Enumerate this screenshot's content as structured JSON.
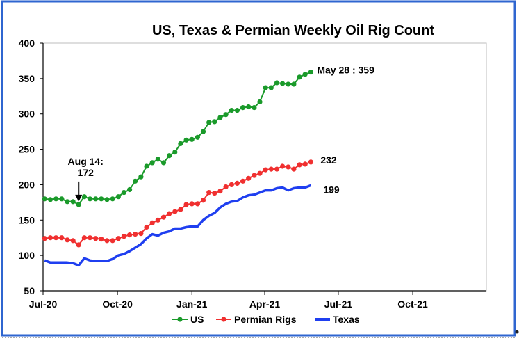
{
  "chart_data": {
    "type": "line",
    "title": "US, Texas & Permian Weekly Oil Rig Count",
    "xlabel": "",
    "ylabel": "",
    "ylim": [
      50,
      400
    ],
    "yticks": [
      50,
      100,
      150,
      200,
      250,
      300,
      350,
      400
    ],
    "xlim": [
      "2020-07-01",
      "2021-12-31"
    ],
    "xticks": [
      {
        "date": "2020-07-01",
        "label": "Jul-20"
      },
      {
        "date": "2020-10-01",
        "label": "Oct-20"
      },
      {
        "date": "2021-01-01",
        "label": "Jan-21"
      },
      {
        "date": "2021-04-01",
        "label": "Apr-21"
      },
      {
        "date": "2021-07-01",
        "label": "Jul-21"
      },
      {
        "date": "2021-10-01",
        "label": "Oct-21"
      }
    ],
    "grid": false,
    "legend_position": "bottom",
    "x": [
      "2020-07-03",
      "2020-07-10",
      "2020-07-17",
      "2020-07-24",
      "2020-07-31",
      "2020-08-07",
      "2020-08-14",
      "2020-08-21",
      "2020-08-28",
      "2020-09-04",
      "2020-09-11",
      "2020-09-18",
      "2020-09-25",
      "2020-10-02",
      "2020-10-09",
      "2020-10-16",
      "2020-10-23",
      "2020-10-30",
      "2020-11-06",
      "2020-11-13",
      "2020-11-20",
      "2020-11-27",
      "2020-12-04",
      "2020-12-11",
      "2020-12-18",
      "2020-12-25",
      "2021-01-01",
      "2021-01-08",
      "2021-01-15",
      "2021-01-22",
      "2021-01-29",
      "2021-02-05",
      "2021-02-12",
      "2021-02-19",
      "2021-02-26",
      "2021-03-05",
      "2021-03-12",
      "2021-03-19",
      "2021-03-26",
      "2021-04-02",
      "2021-04-09",
      "2021-04-16",
      "2021-04-23",
      "2021-04-30",
      "2021-05-07",
      "2021-05-14",
      "2021-05-21",
      "2021-05-28"
    ],
    "series": [
      {
        "name": "US",
        "color": "#1a9a2a",
        "values": [
          180,
          179,
          180,
          180,
          176,
          176,
          172,
          183,
          180,
          180,
          180,
          179,
          180,
          183,
          189,
          193,
          205,
          211,
          226,
          231,
          236,
          231,
          241,
          246,
          258,
          263,
          264,
          267,
          275,
          288,
          289,
          295,
          299,
          305,
          305,
          309,
          310,
          309,
          317,
          337,
          337,
          344,
          343,
          342,
          342,
          352,
          356,
          359
        ]
      },
      {
        "name": "Permian Rigs",
        "color": "#f03030",
        "values": [
          124,
          125,
          125,
          125,
          122,
          121,
          115,
          125,
          125,
          124,
          123,
          121,
          121,
          124,
          127,
          129,
          130,
          131,
          140,
          146,
          150,
          154,
          159,
          162,
          165,
          172,
          173,
          173,
          178,
          189,
          188,
          191,
          197,
          200,
          202,
          205,
          209,
          213,
          216,
          221,
          222,
          222,
          226,
          225,
          222,
          228,
          229,
          232
        ]
      },
      {
        "name": "Texas",
        "color": "#1f3ff0",
        "values": [
          93,
          90,
          90,
          90,
          90,
          89,
          86,
          96,
          93,
          92,
          92,
          92,
          95,
          100,
          102,
          106,
          111,
          116,
          124,
          130,
          128,
          132,
          134,
          138,
          138,
          140,
          141,
          141,
          150,
          156,
          160,
          168,
          173,
          176,
          177,
          182,
          185,
          186,
          189,
          192,
          192,
          195,
          196,
          192,
          195,
          196,
          196,
          199
        ]
      }
    ],
    "annotations": [
      {
        "text": "Aug 14:",
        "series": "US",
        "x": "2020-08-14",
        "y": 172
      },
      {
        "text": "172",
        "series": "US",
        "x": "2020-08-14",
        "y": 172
      },
      {
        "text": "May 28 : 359",
        "series": "US",
        "x": "2021-05-28",
        "y": 359
      },
      {
        "text": "232",
        "series": "Permian Rigs",
        "x": "2021-05-28",
        "y": 232
      },
      {
        "text": "199",
        "series": "Texas",
        "x": "2021-05-28",
        "y": 199
      }
    ]
  }
}
